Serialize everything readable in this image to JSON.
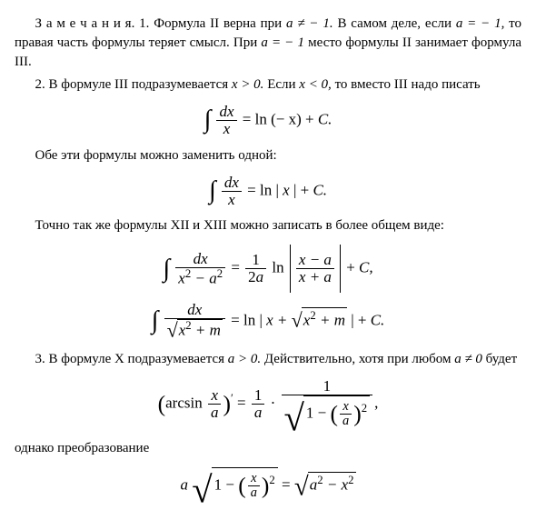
{
  "para1": {
    "lead": "З а м е ч а н и я.",
    "text1": " 1. Формула II верна при ",
    "eq1": "a ≠ − 1.",
    "text2": " В самом деле, если ",
    "eq2": "a = − 1,",
    "text3": " то правая часть формулы теряет смысл. При ",
    "eq3": "a = − 1",
    "text4": " место формулы II занимает формула III."
  },
  "para2": {
    "text1": "2. В формуле III подразумевается ",
    "eq1": "x > 0.",
    "text2": " Если ",
    "eq2": "x < 0,",
    "text3": " то вместо III надо писать"
  },
  "formula1": {
    "num": "dx",
    "den": "x",
    "rhs_a": "= ln (− x) + ",
    "rhs_b": "C."
  },
  "para3": "Обе эти формулы можно заменить одной:",
  "formula2": {
    "num": "dx",
    "den": "x",
    "rhs_a": "= ln | ",
    "rhs_b": "x",
    "rhs_c": " | + ",
    "rhs_d": "C."
  },
  "para4": "Точно так же формулы XII и XIII можно записать в более общем виде:",
  "formula3": {
    "num": "dx",
    "den_a": "x",
    "den_b": "2",
    "den_c": " − a",
    "den_d": "2",
    "r1": "= ",
    "r_num": "1",
    "r_den": "2a",
    "r2": " ln ",
    "abs_num_a": "x − a",
    "abs_den_a": "x + a",
    "r3": " + ",
    "r4": "C,"
  },
  "formula4": {
    "num": "dx",
    "under_a": "x",
    "under_b": "2",
    "under_c": " + m",
    "r1": "= ln | ",
    "r2": "x + ",
    "sq_a": "x",
    "sq_b": "2",
    "sq_c": " + m",
    "r3": " | + ",
    "r4": "C."
  },
  "para5": {
    "text1": "3. В формуле X подразумевается ",
    "eq1": "a > 0.",
    "text2": " Действительно, хотя при любом ",
    "eq2": "a ≠ 0",
    "text3": " будет"
  },
  "formula5": {
    "lhs_a": "arcsin ",
    "lhs_num": "x",
    "lhs_den": "a",
    "prime": "′",
    "eq": " = ",
    "f1_num": "1",
    "f1_den": "a",
    "dot": " · ",
    "f2_num": "1",
    "one": "1 − ",
    "inner_num": "x",
    "inner_den": "a",
    "pow": "2",
    "tail": ","
  },
  "para6": "однако преобразование",
  "formula6": {
    "a": "a ",
    "one": "1 − ",
    "inner_num": "x",
    "inner_den": "a",
    "pow": "2",
    "eq": " = ",
    "r_a": "a",
    "r_b": "2",
    "r_c": " − x",
    "r_d": "2"
  }
}
